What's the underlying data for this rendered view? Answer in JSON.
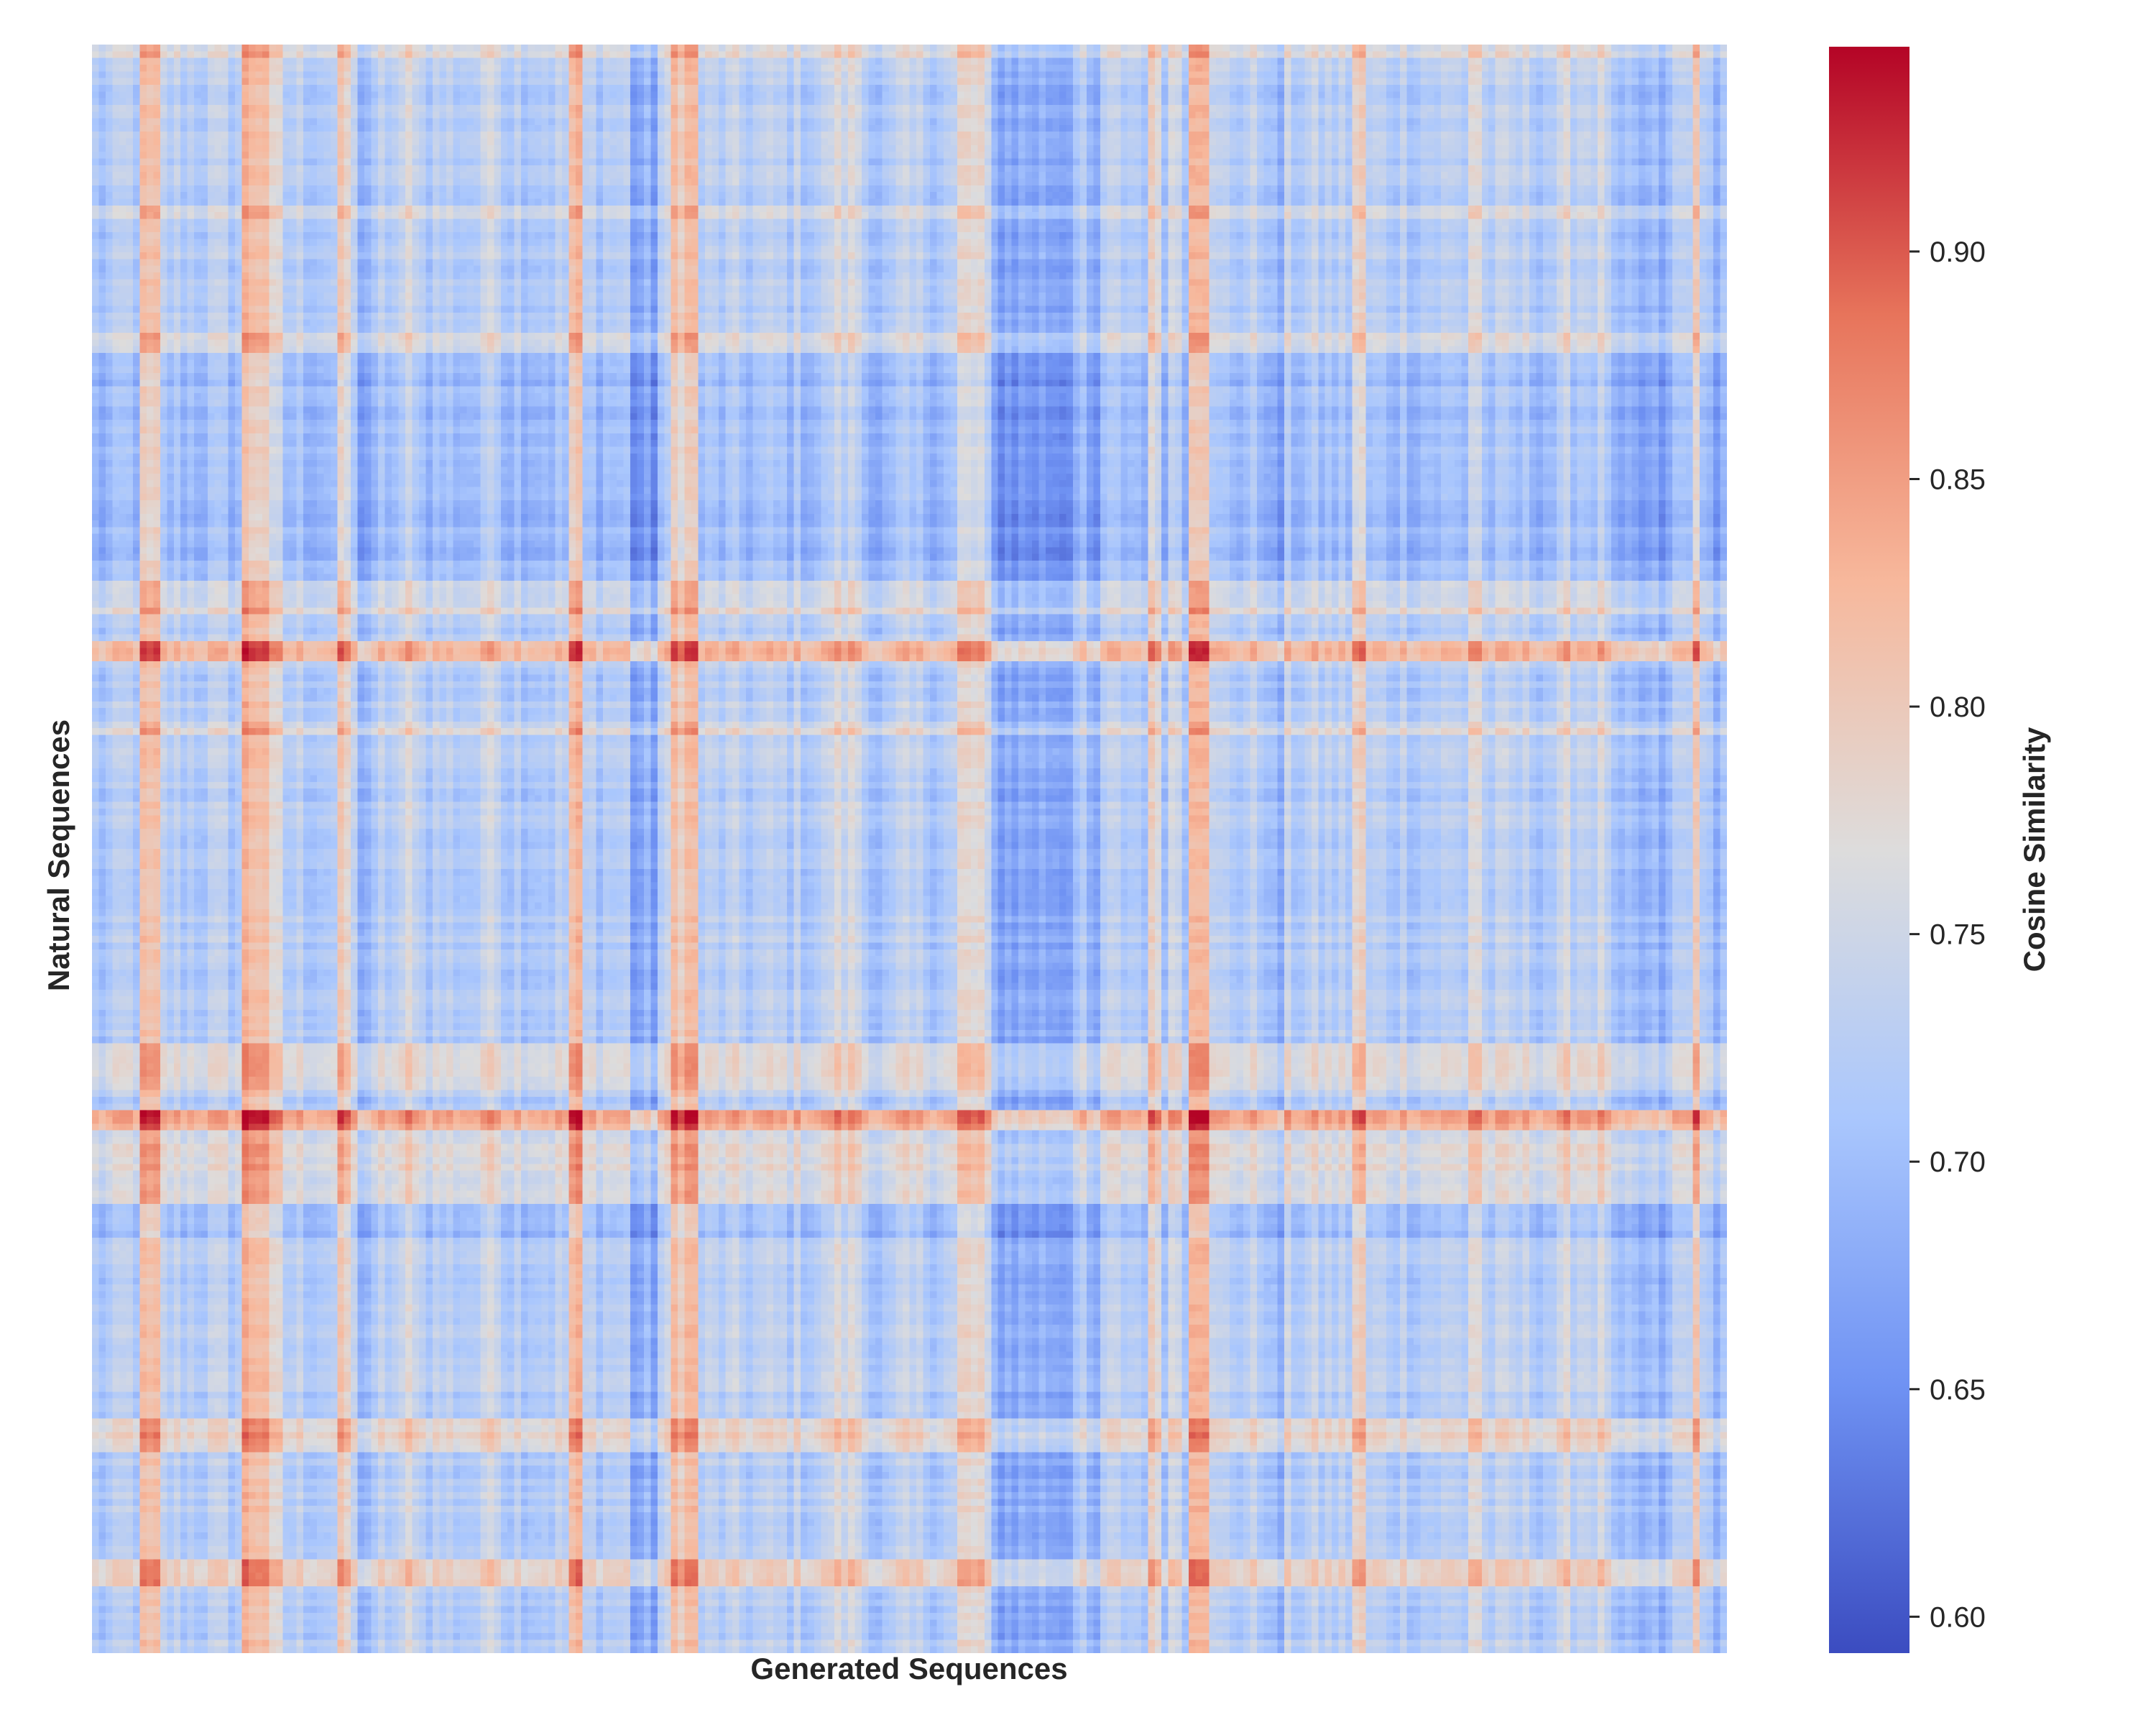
{
  "chart_data": {
    "type": "heatmap",
    "xlabel": "Generated Sequences",
    "ylabel": "Natural Sequences",
    "colorbar": {
      "label": "Cosine Similarity",
      "range": [
        0.592,
        0.945
      ],
      "ticks": [
        "0.60",
        "0.65",
        "0.70",
        "0.75",
        "0.80",
        "0.85",
        "0.90"
      ],
      "colormap": "coolwarm",
      "stops": [
        "#3b4cc0",
        "#6f92f3",
        "#aac7fd",
        "#dddcdc",
        "#f7b89c",
        "#e7745b",
        "#b40426"
      ]
    },
    "grid": false,
    "n_cols": 240,
    "n_rows": 240,
    "base_value": 0.725,
    "column_bands": [
      {
        "from": 0.0,
        "to": 0.017,
        "delta": -0.015
      },
      {
        "from": 0.028,
        "to": 0.043,
        "delta": 0.075
      },
      {
        "from": 0.09,
        "to": 0.108,
        "delta": 0.1
      },
      {
        "from": 0.11,
        "to": 0.116,
        "delta": 0.03
      },
      {
        "from": 0.15,
        "to": 0.158,
        "delta": 0.06
      },
      {
        "from": 0.162,
        "to": 0.175,
        "delta": -0.03
      },
      {
        "from": 0.19,
        "to": 0.2,
        "delta": 0.035
      },
      {
        "from": 0.24,
        "to": 0.25,
        "delta": 0.04
      },
      {
        "from": 0.29,
        "to": 0.3,
        "delta": 0.09
      },
      {
        "from": 0.33,
        "to": 0.345,
        "delta": -0.05
      },
      {
        "from": 0.355,
        "to": 0.372,
        "delta": 0.09
      },
      {
        "from": 0.45,
        "to": 0.47,
        "delta": 0.03
      },
      {
        "from": 0.48,
        "to": 0.49,
        "delta": -0.02
      },
      {
        "from": 0.53,
        "to": 0.545,
        "delta": 0.05
      },
      {
        "from": 0.55,
        "to": 0.6,
        "delta": -0.045
      },
      {
        "from": 0.61,
        "to": 0.618,
        "delta": -0.06
      },
      {
        "from": 0.645,
        "to": 0.655,
        "delta": 0.05
      },
      {
        "from": 0.66,
        "to": 0.665,
        "delta": 0.03
      },
      {
        "from": 0.67,
        "to": 0.682,
        "delta": 0.12
      },
      {
        "from": 0.72,
        "to": 0.73,
        "delta": -0.04
      },
      {
        "from": 0.77,
        "to": 0.78,
        "delta": 0.06
      },
      {
        "from": 0.84,
        "to": 0.85,
        "delta": 0.05
      },
      {
        "from": 0.9,
        "to": 0.93,
        "delta": 0.02
      },
      {
        "from": 0.93,
        "to": 0.965,
        "delta": -0.04
      },
      {
        "from": 0.98,
        "to": 0.985,
        "delta": 0.1
      },
      {
        "from": 0.985,
        "to": 1.0,
        "delta": -0.02
      }
    ],
    "row_bands": [
      {
        "from": 0.0,
        "to": 0.01,
        "delta": 0.04
      },
      {
        "from": 0.1,
        "to": 0.11,
        "delta": 0.04
      },
      {
        "from": 0.18,
        "to": 0.19,
        "delta": 0.04
      },
      {
        "from": 0.19,
        "to": 0.35,
        "delta": -0.025
      },
      {
        "from": 0.335,
        "to": 0.355,
        "delta": 0.04
      },
      {
        "from": 0.37,
        "to": 0.385,
        "delta": 0.1
      },
      {
        "from": 0.42,
        "to": 0.43,
        "delta": 0.04
      },
      {
        "from": 0.62,
        "to": 0.65,
        "delta": 0.05
      },
      {
        "from": 0.662,
        "to": 0.675,
        "delta": 0.11
      },
      {
        "from": 0.675,
        "to": 0.72,
        "delta": 0.04
      },
      {
        "from": 0.72,
        "to": 0.74,
        "delta": -0.02
      },
      {
        "from": 0.855,
        "to": 0.875,
        "delta": 0.06
      },
      {
        "from": 0.94,
        "to": 0.96,
        "delta": 0.06
      }
    ]
  }
}
